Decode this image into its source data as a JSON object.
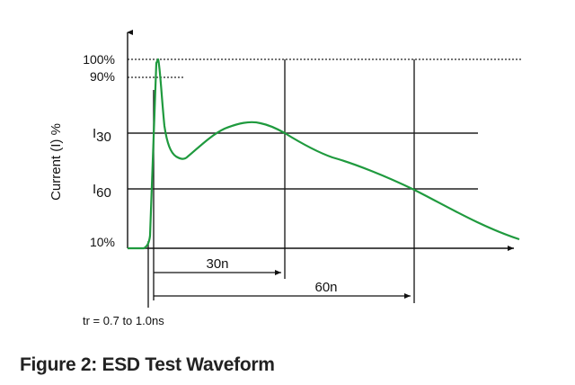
{
  "figure": {
    "caption": "Figure 2: ESD Test Waveform",
    "y_axis_label": "Current (I) %",
    "y_ticks": {
      "p100": "100%",
      "p90": "90%",
      "i30_main": "I",
      "i30_sub": "30",
      "i60_main": "I",
      "i60_sub": "60",
      "p10": "10%"
    },
    "dimensions": {
      "d30": "30n",
      "d60": "60n",
      "rise_time": "tr = 0.7 to 1.0ns"
    },
    "colors": {
      "waveform": "#1f9a3e",
      "axes": "#111111",
      "grid": "#222222"
    }
  }
}
